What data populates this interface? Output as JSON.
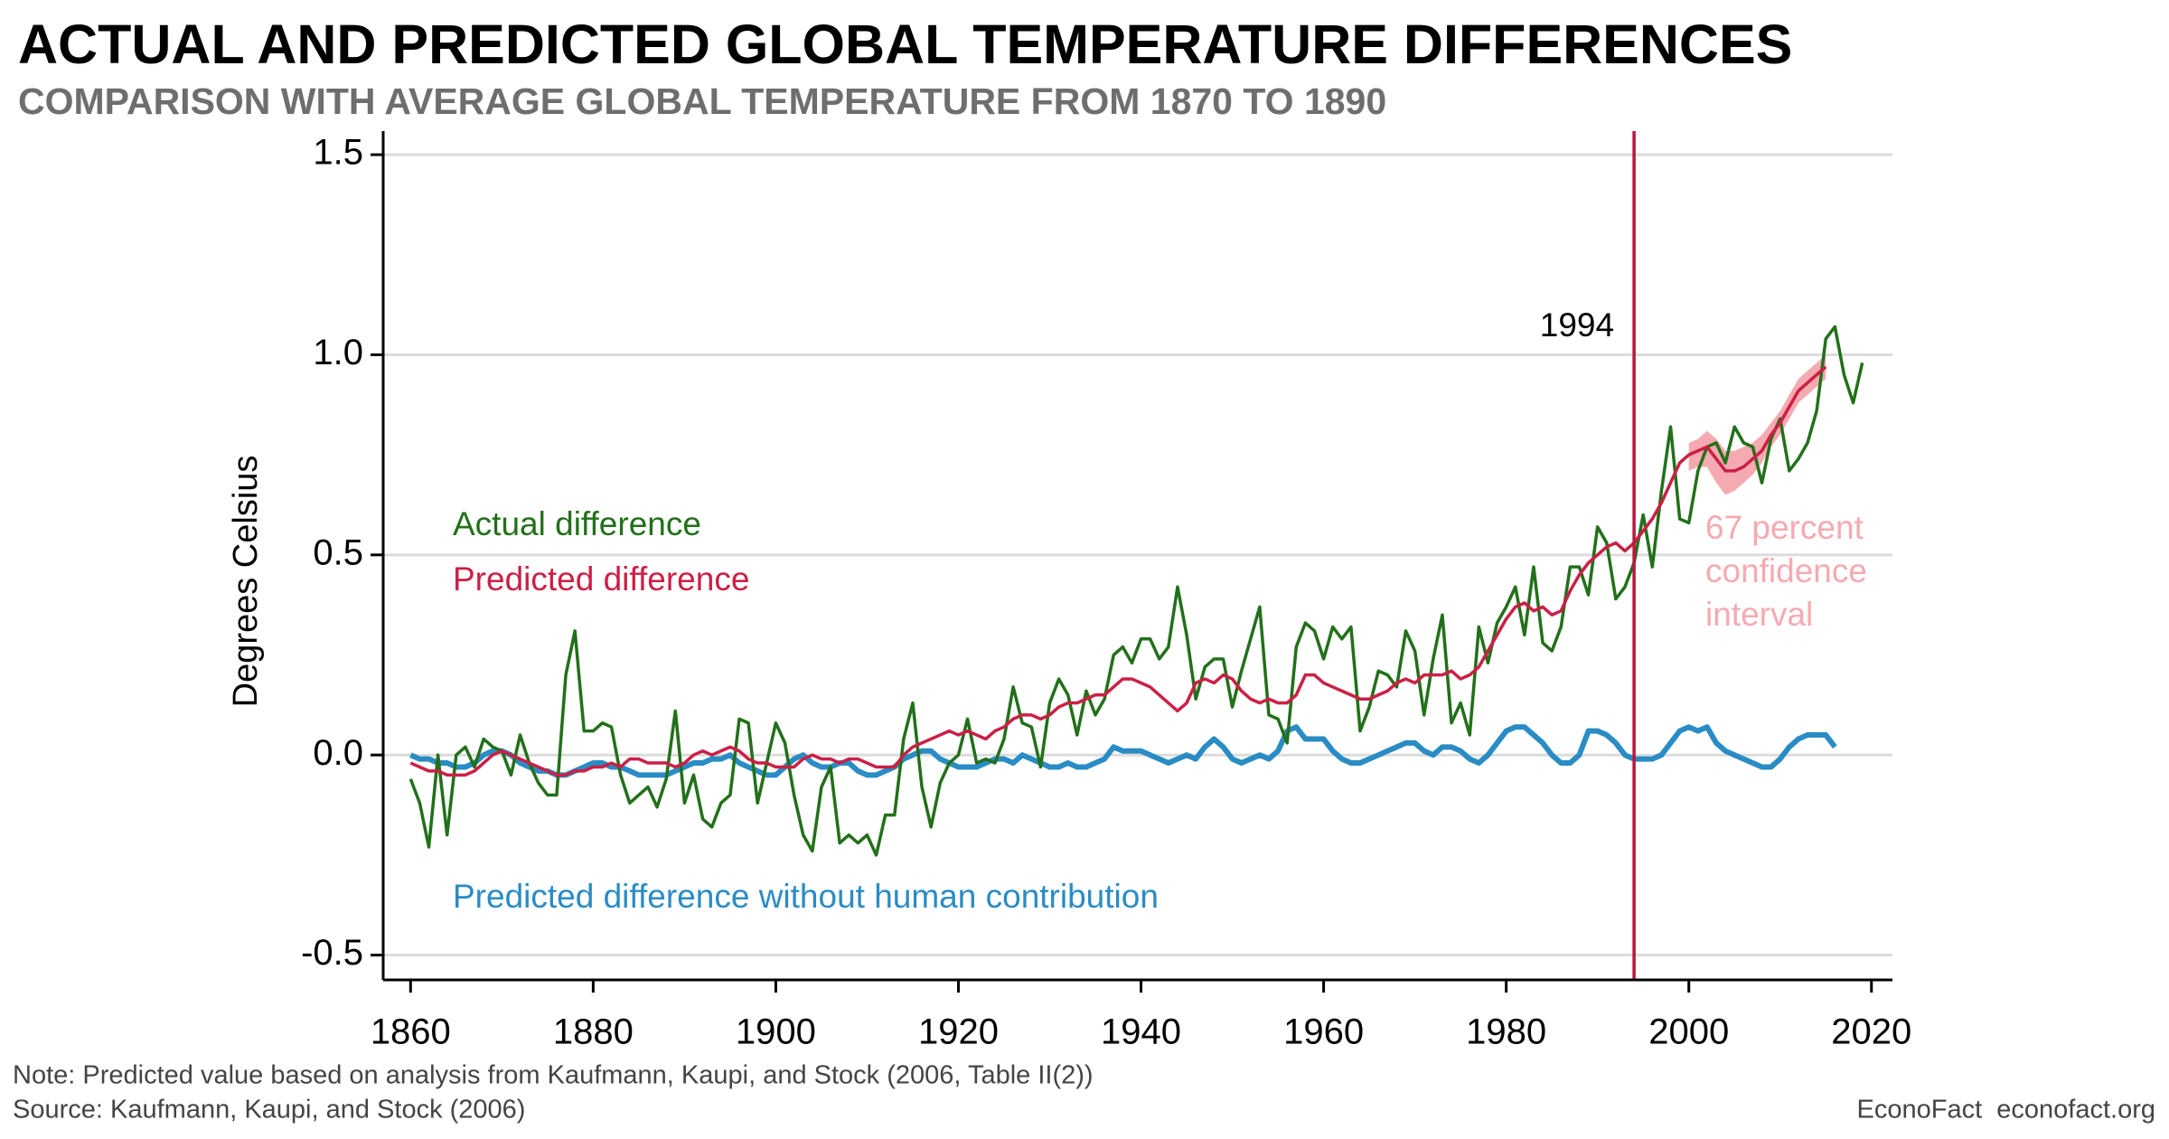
{
  "chart_data": {
    "type": "line",
    "title": "ACTUAL AND PREDICTED GLOBAL TEMPERATURE DIFFERENCES",
    "subtitle": "COMPARISON WITH AVERAGE GLOBAL TEMPERATURE FROM 1870 TO 1890",
    "y_label": "Degrees Celsius",
    "x": [
      1860,
      1861,
      1862,
      1863,
      1864,
      1865,
      1866,
      1867,
      1868,
      1869,
      1870,
      1871,
      1872,
      1873,
      1874,
      1875,
      1876,
      1877,
      1878,
      1879,
      1880,
      1881,
      1882,
      1883,
      1884,
      1885,
      1886,
      1887,
      1888,
      1889,
      1890,
      1891,
      1892,
      1893,
      1894,
      1895,
      1896,
      1897,
      1898,
      1899,
      1900,
      1901,
      1902,
      1903,
      1904,
      1905,
      1906,
      1907,
      1908,
      1909,
      1910,
      1911,
      1912,
      1913,
      1914,
      1915,
      1916,
      1917,
      1918,
      1919,
      1920,
      1921,
      1922,
      1923,
      1924,
      1925,
      1926,
      1927,
      1928,
      1929,
      1930,
      1931,
      1932,
      1933,
      1934,
      1935,
      1936,
      1937,
      1938,
      1939,
      1940,
      1941,
      1942,
      1943,
      1944,
      1945,
      1946,
      1947,
      1948,
      1949,
      1950,
      1951,
      1952,
      1953,
      1954,
      1955,
      1956,
      1957,
      1958,
      1959,
      1960,
      1961,
      1962,
      1963,
      1964,
      1965,
      1966,
      1967,
      1968,
      1969,
      1970,
      1971,
      1972,
      1973,
      1974,
      1975,
      1976,
      1977,
      1978,
      1979,
      1980,
      1981,
      1982,
      1983,
      1984,
      1985,
      1986,
      1987,
      1988,
      1989,
      1990,
      1991,
      1992,
      1993,
      1994,
      1995,
      1996,
      1997,
      1998,
      1999,
      2000,
      2001,
      2002,
      2003,
      2004,
      2005,
      2006,
      2007,
      2008,
      2009,
      2010,
      2011,
      2012,
      2013,
      2014,
      2015,
      2016,
      2017,
      2018,
      2019
    ],
    "series": [
      {
        "name": "Actual difference",
        "color": "#22701a",
        "width": 3.5,
        "values": [
          -0.06,
          -0.12,
          -0.23,
          0.0,
          -0.2,
          0.0,
          0.02,
          -0.03,
          0.04,
          0.02,
          0.01,
          -0.05,
          0.05,
          -0.02,
          -0.07,
          -0.1,
          -0.1,
          0.2,
          0.31,
          0.06,
          0.06,
          0.08,
          0.07,
          -0.05,
          -0.12,
          -0.1,
          -0.08,
          -0.13,
          -0.06,
          0.11,
          -0.12,
          -0.05,
          -0.16,
          -0.18,
          -0.12,
          -0.1,
          0.09,
          0.08,
          -0.12,
          -0.02,
          0.08,
          0.03,
          -0.1,
          -0.2,
          -0.24,
          -0.08,
          -0.03,
          -0.22,
          -0.2,
          -0.22,
          -0.2,
          -0.25,
          -0.15,
          -0.15,
          0.04,
          0.13,
          -0.08,
          -0.18,
          -0.07,
          -0.02,
          0.0,
          0.09,
          -0.02,
          -0.01,
          -0.02,
          0.04,
          0.17,
          0.08,
          0.07,
          -0.03,
          0.13,
          0.19,
          0.15,
          0.05,
          0.16,
          0.1,
          0.14,
          0.25,
          0.27,
          0.23,
          0.29,
          0.29,
          0.24,
          0.27,
          0.42,
          0.3,
          0.14,
          0.22,
          0.24,
          0.24,
          0.12,
          0.21,
          0.29,
          0.37,
          0.1,
          0.09,
          0.03,
          0.27,
          0.33,
          0.31,
          0.24,
          0.32,
          0.29,
          0.32,
          0.06,
          0.12,
          0.21,
          0.2,
          0.17,
          0.31,
          0.26,
          0.1,
          0.24,
          0.35,
          0.08,
          0.13,
          0.05,
          0.32,
          0.23,
          0.33,
          0.37,
          0.42,
          0.3,
          0.47,
          0.28,
          0.26,
          0.32,
          0.47,
          0.47,
          0.4,
          0.57,
          0.53,
          0.39,
          0.42,
          0.48,
          0.6,
          0.47,
          0.66,
          0.82,
          0.59,
          0.58,
          0.71,
          0.77,
          0.78,
          0.73,
          0.82,
          0.78,
          0.77,
          0.68,
          0.79,
          0.84,
          0.71,
          0.74,
          0.78,
          0.86,
          1.04,
          1.07,
          0.95,
          0.88,
          0.98
        ]
      },
      {
        "name": "Predicted difference",
        "color": "#cc1f45",
        "width": 3.5,
        "values": [
          -0.02,
          -0.03,
          -0.04,
          -0.04,
          -0.05,
          -0.05,
          -0.05,
          -0.04,
          -0.02,
          0.0,
          0.01,
          0.0,
          -0.01,
          -0.02,
          -0.03,
          -0.04,
          -0.05,
          -0.05,
          -0.04,
          -0.04,
          -0.03,
          -0.03,
          -0.02,
          -0.03,
          -0.01,
          -0.01,
          -0.02,
          -0.02,
          -0.02,
          -0.03,
          -0.02,
          0.0,
          0.01,
          0.0,
          0.01,
          0.02,
          0.01,
          -0.01,
          -0.02,
          -0.02,
          -0.03,
          -0.03,
          -0.03,
          -0.01,
          0.0,
          -0.01,
          -0.01,
          -0.02,
          -0.01,
          -0.01,
          -0.02,
          -0.03,
          -0.03,
          -0.03,
          0.0,
          0.02,
          0.03,
          0.04,
          0.05,
          0.06,
          0.05,
          0.06,
          0.05,
          0.04,
          0.06,
          0.07,
          0.09,
          0.1,
          0.1,
          0.09,
          0.1,
          0.12,
          0.13,
          0.13,
          0.14,
          0.15,
          0.15,
          0.17,
          0.19,
          0.19,
          0.18,
          0.17,
          0.15,
          0.13,
          0.11,
          0.13,
          0.18,
          0.19,
          0.18,
          0.2,
          0.19,
          0.16,
          0.14,
          0.13,
          0.14,
          0.13,
          0.13,
          0.15,
          0.2,
          0.2,
          0.18,
          0.17,
          0.16,
          0.15,
          0.14,
          0.14,
          0.15,
          0.16,
          0.18,
          0.19,
          0.18,
          0.2,
          0.2,
          0.2,
          0.21,
          0.19,
          0.2,
          0.22,
          0.26,
          0.3,
          0.34,
          0.37,
          0.38,
          0.36,
          0.37,
          0.35,
          0.36,
          0.41,
          0.45,
          0.48,
          0.5,
          0.52,
          0.53,
          0.51,
          0.53,
          0.56,
          0.59,
          0.63,
          0.68,
          0.73,
          0.75,
          0.76,
          0.77,
          0.74,
          0.71,
          0.71,
          0.72,
          0.74,
          0.76,
          0.8,
          0.83,
          0.87,
          0.91,
          0.93,
          0.95,
          0.97,
          null,
          null,
          null,
          null
        ]
      },
      {
        "name": "Predicted difference without human contribution",
        "color": "#2a8cc4",
        "width": 6,
        "values": [
          0.0,
          -0.01,
          -0.01,
          -0.02,
          -0.02,
          -0.03,
          -0.03,
          -0.02,
          0.0,
          0.01,
          0.01,
          0.0,
          -0.02,
          -0.03,
          -0.04,
          -0.04,
          -0.05,
          -0.05,
          -0.04,
          -0.03,
          -0.02,
          -0.02,
          -0.03,
          -0.03,
          -0.04,
          -0.05,
          -0.05,
          -0.05,
          -0.05,
          -0.04,
          -0.03,
          -0.02,
          -0.02,
          -0.01,
          -0.01,
          0.0,
          -0.02,
          -0.03,
          -0.04,
          -0.05,
          -0.05,
          -0.03,
          -0.01,
          0.0,
          -0.02,
          -0.03,
          -0.03,
          -0.02,
          -0.02,
          -0.04,
          -0.05,
          -0.05,
          -0.04,
          -0.03,
          -0.01,
          0.0,
          0.01,
          0.01,
          -0.01,
          -0.02,
          -0.03,
          -0.03,
          -0.03,
          -0.02,
          -0.01,
          -0.01,
          -0.02,
          0.0,
          -0.01,
          -0.02,
          -0.03,
          -0.03,
          -0.02,
          -0.03,
          -0.03,
          -0.02,
          -0.01,
          0.02,
          0.01,
          0.01,
          0.01,
          0.0,
          -0.01,
          -0.02,
          -0.01,
          0.0,
          -0.01,
          0.02,
          0.04,
          0.02,
          -0.01,
          -0.02,
          -0.01,
          0.0,
          -0.01,
          0.01,
          0.06,
          0.07,
          0.04,
          0.04,
          0.04,
          0.01,
          -0.01,
          -0.02,
          -0.02,
          -0.01,
          0.0,
          0.01,
          0.02,
          0.03,
          0.03,
          0.01,
          0.0,
          0.02,
          0.02,
          0.01,
          -0.01,
          -0.02,
          0.0,
          0.03,
          0.06,
          0.07,
          0.07,
          0.05,
          0.03,
          0.0,
          -0.02,
          -0.02,
          0.0,
          0.06,
          0.06,
          0.05,
          0.03,
          0.0,
          -0.01,
          -0.01,
          -0.01,
          0.0,
          0.03,
          0.06,
          0.07,
          0.06,
          0.07,
          0.03,
          0.01,
          0.0,
          -0.01,
          -0.02,
          -0.03,
          -0.03,
          -0.01,
          0.02,
          0.04,
          0.05,
          0.05,
          0.05,
          0.02,
          null,
          null,
          null
        ]
      }
    ],
    "confidence_interval": {
      "label_lines": [
        "67 percent",
        "confidence",
        "interval"
      ],
      "color": "#f5aab1",
      "x": [
        2000,
        2001,
        2002,
        2003,
        2004,
        2005,
        2006,
        2007,
        2008,
        2009,
        2010,
        2011,
        2012,
        2013,
        2014,
        2015
      ],
      "lower": [
        0.71,
        0.72,
        0.72,
        0.68,
        0.65,
        0.66,
        0.68,
        0.7,
        0.73,
        0.77,
        0.8,
        0.84,
        0.88,
        0.9,
        0.92,
        0.94
      ],
      "upper": [
        0.78,
        0.79,
        0.81,
        0.79,
        0.76,
        0.76,
        0.77,
        0.78,
        0.8,
        0.83,
        0.86,
        0.9,
        0.94,
        0.96,
        0.98,
        1.0
      ]
    },
    "vline": {
      "x": 1994,
      "color": "#b8173f"
    },
    "xlim": [
      1857,
      2022.3
    ],
    "ylim": [
      -0.562,
      1.559
    ],
    "xticks": [
      1860,
      1880,
      1900,
      1920,
      1940,
      1960,
      1980,
      2000,
      2020
    ],
    "yticks": [
      {
        "value": -0.5,
        "label": "-0.5"
      },
      {
        "value": 0,
        "label": "0.0"
      },
      0.5,
      {
        "value": 1,
        "label": "1.0"
      },
      1.5
    ],
    "grid": true,
    "note": "Note: Predicted value based on analysis from Kaufmann, Kaupi, and Stock (2006, Table II(2))",
    "source": "Source: Kaufmann, Kaupi, and Stock (2006)",
    "credit": "EconoFact  econofact.org"
  }
}
